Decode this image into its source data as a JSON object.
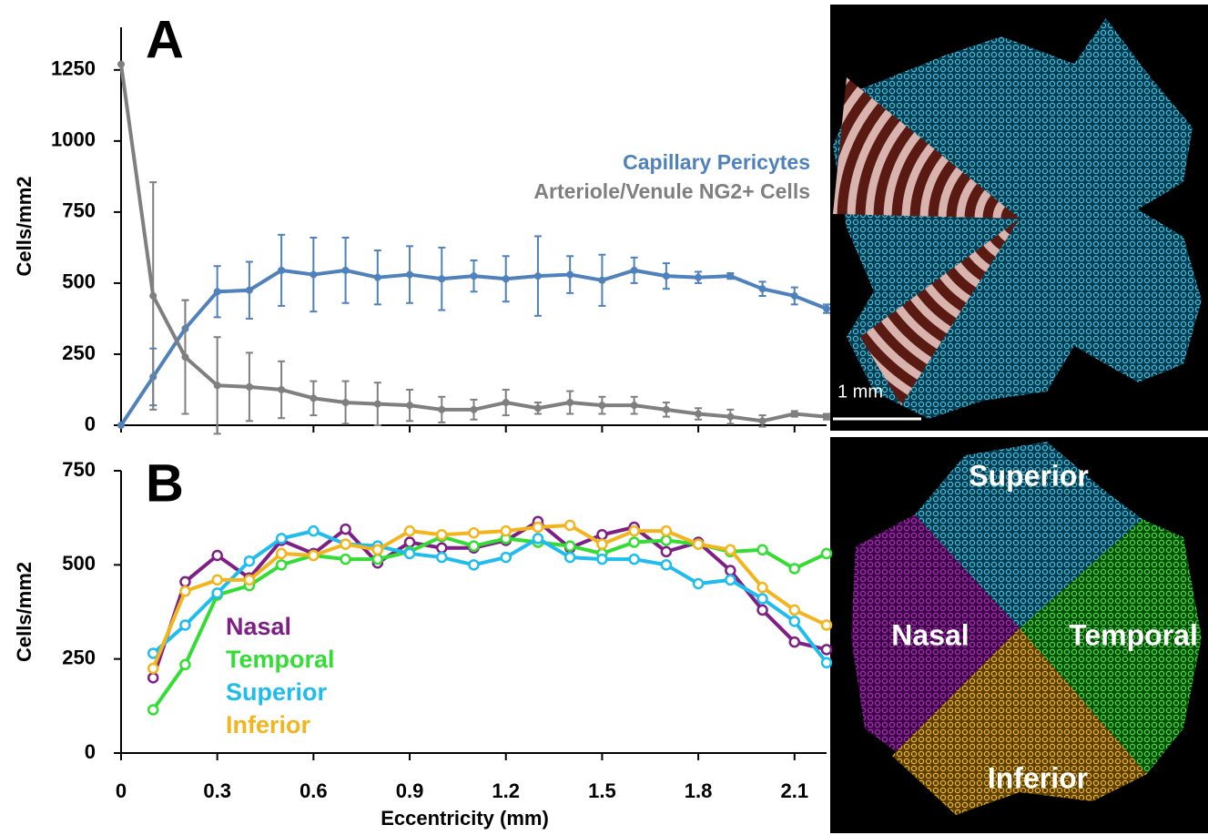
{
  "chart_data": [
    {
      "type": "line",
      "panel_label": "A",
      "y_label": "Cells/mm2",
      "x": [
        0,
        0.1,
        0.2,
        0.3,
        0.4,
        0.5,
        0.6,
        0.7,
        0.8,
        0.9,
        1.0,
        1.1,
        1.2,
        1.3,
        1.4,
        1.5,
        1.6,
        1.7,
        1.8,
        1.9,
        2.0,
        2.1,
        2.2
      ],
      "xlim": [
        0,
        2.2
      ],
      "xticks": [
        0,
        0.3,
        0.6,
        0.9,
        1.2,
        1.5,
        1.8,
        2.1
      ],
      "ylim": [
        0,
        1400
      ],
      "yticks": [
        0,
        250,
        500,
        750,
        1000,
        1250
      ],
      "marker": "dot",
      "series": [
        {
          "name": "Capillary Pericytes",
          "color": "#4f81bd",
          "values": [
            0,
            170,
            340,
            470,
            475,
            545,
            530,
            545,
            520,
            530,
            515,
            525,
            515,
            525,
            530,
            510,
            545,
            525,
            520,
            525,
            480,
            455,
            410
          ],
          "errors": [
            0,
            100,
            100,
            90,
            100,
            125,
            130,
            115,
            95,
            100,
            110,
            55,
            80,
            140,
            65,
            90,
            45,
            45,
            20,
            10,
            25,
            30,
            15
          ]
        },
        {
          "name": "Arteriole/Venule NG2+ Cells",
          "color": "#7f7f7f",
          "values": [
            1270,
            455,
            240,
            140,
            135,
            125,
            95,
            80,
            75,
            70,
            55,
            55,
            80,
            60,
            80,
            70,
            70,
            55,
            40,
            30,
            15,
            40,
            30
          ],
          "errors": [
            0,
            400,
            200,
            170,
            120,
            100,
            60,
            75,
            75,
            55,
            45,
            35,
            45,
            20,
            40,
            30,
            30,
            25,
            20,
            25,
            20,
            10,
            10
          ]
        }
      ]
    },
    {
      "type": "line",
      "panel_label": "B",
      "y_label": "Cells/mm2",
      "x_label": "Eccentricity (mm)",
      "x": [
        0.1,
        0.2,
        0.3,
        0.4,
        0.5,
        0.6,
        0.7,
        0.8,
        0.9,
        1.0,
        1.1,
        1.2,
        1.3,
        1.4,
        1.5,
        1.6,
        1.7,
        1.8,
        1.9,
        2.0,
        2.1,
        2.2
      ],
      "xlim": [
        0,
        2.2
      ],
      "xticks": [
        0,
        0.3,
        0.6,
        0.9,
        1.2,
        1.5,
        1.8,
        2.1
      ],
      "ylim": [
        0,
        750
      ],
      "yticks": [
        0,
        250,
        500,
        750
      ],
      "marker": "circle",
      "series": [
        {
          "name": "Nasal",
          "color": "#7e1f86",
          "values": [
            200,
            455,
            525,
            465,
            565,
            530,
            595,
            505,
            560,
            545,
            545,
            565,
            615,
            545,
            580,
            600,
            535,
            560,
            485,
            380,
            295,
            275
          ]
        },
        {
          "name": "Temporal",
          "color": "#33dd33",
          "values": [
            115,
            235,
            420,
            445,
            500,
            525,
            515,
            515,
            535,
            575,
            550,
            570,
            560,
            550,
            530,
            560,
            565,
            555,
            535,
            540,
            490,
            530
          ]
        },
        {
          "name": "Superior",
          "color": "#1fbcee",
          "values": [
            265,
            340,
            425,
            510,
            570,
            590,
            555,
            550,
            530,
            520,
            500,
            520,
            570,
            520,
            515,
            515,
            500,
            450,
            460,
            410,
            350,
            240
          ]
        },
        {
          "name": "Inferior",
          "color": "#f2b51d",
          "values": [
            225,
            430,
            460,
            460,
            530,
            525,
            555,
            540,
            590,
            580,
            585,
            590,
            600,
            605,
            555,
            590,
            590,
            555,
            540,
            440,
            380,
            340
          ]
        }
      ]
    }
  ],
  "images": {
    "top": {
      "scale_label": "1 mm"
    },
    "bottom": {
      "labels": [
        "Superior",
        "Nasal",
        "Temporal",
        "Inferior"
      ]
    }
  }
}
